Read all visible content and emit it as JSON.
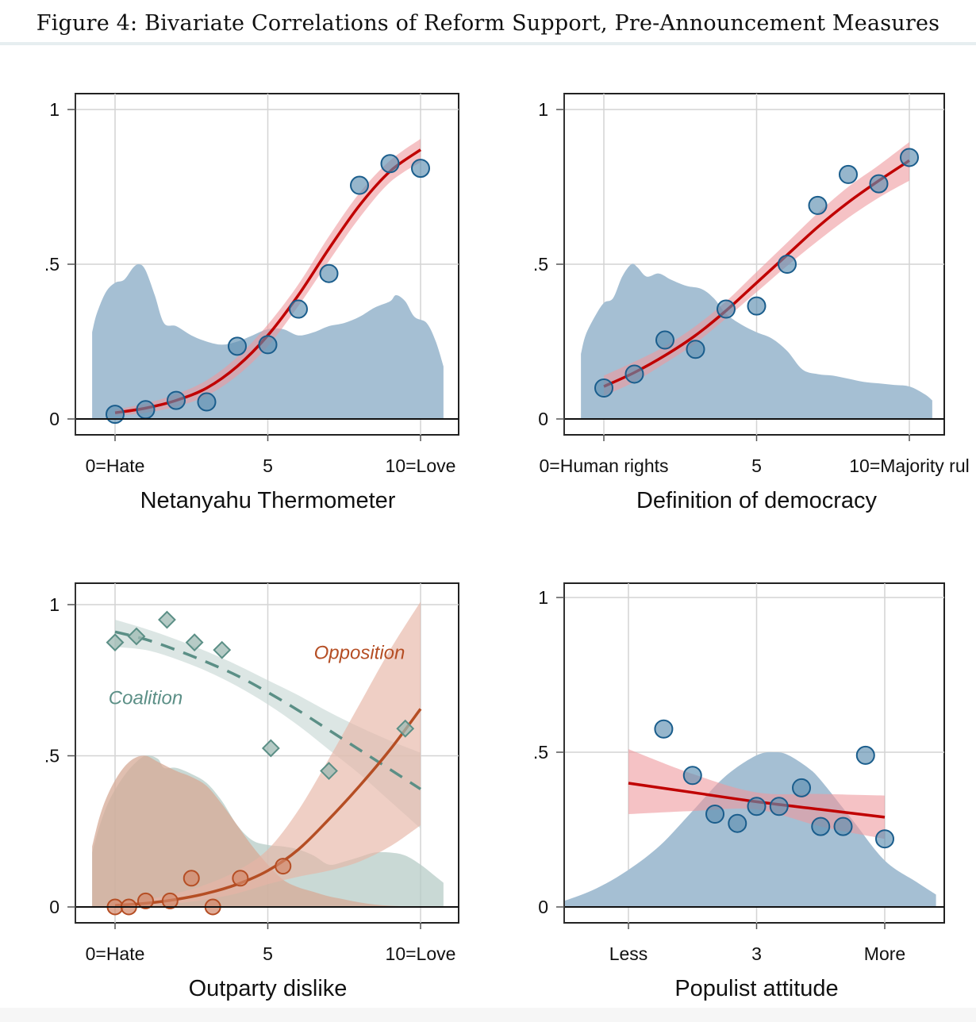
{
  "figure": {
    "title": "Figure 4: Bivariate Correlations of Reform Support, Pre-Announcement Measures"
  },
  "colors": {
    "density_blue": "#a5bfd3",
    "point_blue_fill": "#5d8fb0",
    "point_blue_stroke": "#1a5d8c",
    "fit_red": "#c00000",
    "ci_red": "#ef9a9e",
    "coalition": "#5b8f86",
    "coalition_fill": "#9dbab3",
    "coalition_ci": "#c9d8d5",
    "coalition_density": "#b7ccc7",
    "opposition": "#b54e24",
    "opposition_fill": "#d3876a",
    "opposition_ci": "#e6b6a6",
    "opposition_density": "#d6a996",
    "grid": "#d4d4d4",
    "axis": "#111111"
  },
  "chart_data": [
    {
      "id": "netanyahu",
      "type": "scatter",
      "title": "",
      "xlabel": "Netanyahu Thermometer",
      "ylabel": "",
      "xlim": [
        -1.3,
        11.3
      ],
      "ylim": [
        -0.05,
        1.05
      ],
      "xticks": [
        0,
        5,
        10
      ],
      "xtick_labels": [
        "0=Hate",
        "5",
        "10=Love"
      ],
      "yticks": [
        0,
        0.5,
        1
      ],
      "ytick_labels": [
        "0",
        ".5",
        "1"
      ],
      "grid": true,
      "points": {
        "x": [
          0,
          1,
          2,
          3,
          4,
          5,
          6,
          7,
          8,
          9,
          10
        ],
        "y": [
          0.015,
          0.03,
          0.06,
          0.055,
          0.235,
          0.24,
          0.355,
          0.47,
          0.755,
          0.825,
          0.81
        ]
      },
      "fit": {
        "kind": "logistic",
        "x": [
          0,
          1,
          2,
          3,
          4,
          5,
          6,
          7,
          8,
          9,
          10
        ],
        "y": [
          0.02,
          0.035,
          0.06,
          0.1,
          0.17,
          0.27,
          0.4,
          0.55,
          0.69,
          0.8,
          0.87
        ],
        "ci_low": [
          0.01,
          0.02,
          0.04,
          0.075,
          0.14,
          0.235,
          0.365,
          0.51,
          0.65,
          0.765,
          0.83
        ],
        "ci_high": [
          0.03,
          0.05,
          0.08,
          0.125,
          0.2,
          0.305,
          0.435,
          0.59,
          0.73,
          0.835,
          0.905
        ]
      },
      "density": {
        "x": [
          -0.75,
          -0.6,
          -0.3,
          0,
          0.3,
          0.6,
          0.8,
          1.0,
          1.3,
          1.6,
          2.0,
          2.5,
          3.0,
          3.5,
          4.0,
          4.5,
          5.0,
          5.5,
          6.0,
          6.5,
          7.0,
          7.5,
          8.0,
          8.5,
          9.0,
          9.2,
          9.5,
          9.8,
          10.2,
          10.5,
          10.75
        ],
        "y": [
          0.28,
          0.34,
          0.41,
          0.44,
          0.45,
          0.49,
          0.5,
          0.48,
          0.4,
          0.31,
          0.3,
          0.27,
          0.25,
          0.24,
          0.25,
          0.27,
          0.29,
          0.29,
          0.27,
          0.28,
          0.3,
          0.31,
          0.33,
          0.36,
          0.38,
          0.4,
          0.38,
          0.33,
          0.31,
          0.25,
          0.17
        ]
      }
    },
    {
      "id": "democracy",
      "type": "scatter",
      "title": "",
      "xlabel": "Definition of democracy",
      "ylabel": "",
      "xlim": [
        -1.3,
        11.3
      ],
      "ylim": [
        -0.05,
        1.05
      ],
      "xticks": [
        0,
        5,
        10
      ],
      "xtick_labels": [
        "0=Human rights",
        "5",
        "10=Majority rul"
      ],
      "yticks": [
        0,
        0.5,
        1
      ],
      "ytick_labels": [
        "0",
        ".5",
        "1"
      ],
      "grid": true,
      "points": {
        "x": [
          0,
          1,
          2,
          3,
          4,
          5,
          6,
          7,
          8,
          9,
          10
        ],
        "y": [
          0.1,
          0.145,
          0.255,
          0.225,
          0.355,
          0.365,
          0.5,
          0.69,
          0.79,
          0.76,
          0.845
        ]
      },
      "fit": {
        "kind": "logistic",
        "x": [
          0,
          1,
          2,
          3,
          4,
          5,
          6,
          7,
          8,
          9,
          10
        ],
        "y": [
          0.105,
          0.15,
          0.205,
          0.27,
          0.35,
          0.44,
          0.53,
          0.62,
          0.7,
          0.77,
          0.835
        ],
        "ci_low": [
          0.075,
          0.12,
          0.18,
          0.245,
          0.325,
          0.41,
          0.495,
          0.575,
          0.65,
          0.715,
          0.77
        ],
        "ci_high": [
          0.14,
          0.185,
          0.235,
          0.3,
          0.38,
          0.475,
          0.57,
          0.665,
          0.75,
          0.82,
          0.895
        ]
      },
      "density": {
        "x": [
          -0.75,
          -0.6,
          -0.3,
          0,
          0.3,
          0.6,
          0.9,
          1.1,
          1.4,
          1.8,
          2.2,
          2.7,
          3.2,
          3.6,
          4.0,
          4.5,
          5.0,
          5.5,
          6.0,
          6.5,
          7.0,
          7.5,
          8.0,
          8.5,
          9.0,
          9.5,
          10.0,
          10.5,
          10.75
        ],
        "y": [
          0.21,
          0.27,
          0.33,
          0.375,
          0.39,
          0.46,
          0.5,
          0.49,
          0.46,
          0.47,
          0.45,
          0.43,
          0.42,
          0.39,
          0.34,
          0.305,
          0.28,
          0.26,
          0.22,
          0.16,
          0.145,
          0.14,
          0.13,
          0.12,
          0.115,
          0.11,
          0.105,
          0.08,
          0.06
        ]
      }
    },
    {
      "id": "outparty",
      "type": "scatter",
      "title": "",
      "xlabel": "Outparty dislike",
      "ylabel": "",
      "xlim": [
        -1.3,
        11.3
      ],
      "ylim": [
        -0.05,
        1.05
      ],
      "xticks": [
        0,
        5,
        10
      ],
      "xtick_labels": [
        "0=Hate",
        "5",
        "10=Love"
      ],
      "yticks": [
        0,
        0.5,
        1
      ],
      "ytick_labels": [
        "0",
        ".5",
        "1"
      ],
      "grid": true,
      "annotations": [
        {
          "text": "Opposition",
          "x": 8.0,
          "y": 0.82,
          "series": "opposition"
        },
        {
          "text": "Coalition",
          "x": 1.0,
          "y": 0.67,
          "series": "coalition"
        }
      ],
      "series": [
        {
          "name": "Coalition",
          "marker": "diamond",
          "line": "dashed",
          "points": {
            "x": [
              0,
              0.7,
              1.7,
              2.6,
              3.5,
              5.1,
              7.0,
              9.5
            ],
            "y": [
              0.875,
              0.895,
              0.95,
              0.875,
              0.85,
              0.525,
              0.45,
              0.59
            ]
          },
          "fit": {
            "x": [
              0,
              1,
              2,
              3,
              4,
              5,
              6,
              7,
              8,
              9,
              10
            ],
            "y": [
              0.91,
              0.885,
              0.85,
              0.81,
              0.765,
              0.71,
              0.65,
              0.585,
              0.52,
              0.455,
              0.39
            ],
            "ci_low": [
              0.86,
              0.85,
              0.82,
              0.78,
              0.73,
              0.67,
              0.6,
              0.52,
              0.44,
              0.35,
              0.26
            ],
            "ci_high": [
              0.95,
              0.92,
              0.885,
              0.845,
              0.8,
              0.75,
              0.7,
              0.645,
              0.595,
              0.55,
              0.51
            ]
          },
          "density": {
            "x": [
              -0.75,
              -0.5,
              -0.2,
              0.2,
              0.6,
              1.0,
              1.4,
              1.6,
              2.0,
              2.5,
              3.0,
              3.5,
              4.0,
              4.5,
              5.0,
              5.5,
              6.0,
              6.5,
              7.0,
              7.5,
              8.0,
              8.5,
              9.0,
              9.5,
              10.0,
              10.5,
              10.75
            ],
            "y": [
              0.18,
              0.27,
              0.35,
              0.42,
              0.47,
              0.5,
              0.49,
              0.46,
              0.46,
              0.44,
              0.41,
              0.35,
              0.27,
              0.22,
              0.205,
              0.2,
              0.19,
              0.17,
              0.14,
              0.15,
              0.165,
              0.18,
              0.18,
              0.17,
              0.14,
              0.1,
              0.08
            ]
          }
        },
        {
          "name": "Opposition",
          "marker": "circle",
          "line": "solid",
          "points": {
            "x": [
              0,
              0.45,
              1.0,
              1.8,
              2.5,
              3.2,
              4.1,
              5.5
            ],
            "y": [
              0.0,
              0.0,
              0.02,
              0.02,
              0.095,
              0.0,
              0.095,
              0.135
            ]
          },
          "fit": {
            "x": [
              0,
              1,
              2,
              3,
              4,
              5,
              6,
              7,
              8,
              9,
              10
            ],
            "y": [
              0.005,
              0.012,
              0.025,
              0.045,
              0.075,
              0.12,
              0.19,
              0.29,
              0.4,
              0.52,
              0.655
            ],
            "ci_low": [
              0.0,
              0.005,
              0.012,
              0.025,
              0.045,
              0.075,
              0.1,
              0.12,
              0.15,
              0.2,
              0.27
            ],
            "ci_high": [
              0.015,
              0.025,
              0.045,
              0.075,
              0.12,
              0.19,
              0.32,
              0.49,
              0.67,
              0.85,
              1.01
            ]
          },
          "density": {
            "x": [
              -0.75,
              -0.5,
              -0.2,
              0.2,
              0.6,
              1.0,
              1.4,
              2.0,
              2.5,
              3.0,
              3.5,
              4.0,
              4.5,
              5.0,
              5.5,
              6.0,
              6.5,
              7.0,
              7.5,
              8.0,
              8.5,
              9.0,
              9.5,
              10.0,
              10.5,
              10.75
            ],
            "y": [
              0.2,
              0.3,
              0.38,
              0.45,
              0.49,
              0.5,
              0.48,
              0.45,
              0.43,
              0.4,
              0.34,
              0.27,
              0.2,
              0.14,
              0.09,
              0.065,
              0.05,
              0.035,
              0.025,
              0.015,
              0.008,
              0.004,
              0.002,
              0.001,
              0.0,
              0.0
            ]
          }
        }
      ]
    },
    {
      "id": "populist",
      "type": "scatter",
      "title": "",
      "xlabel": "Populist attitude",
      "ylabel": "",
      "xlim": [
        -0.2,
        5.5
      ],
      "ylim": [
        -0.05,
        1.05
      ],
      "xticks": [
        1,
        3,
        5
      ],
      "xtick_labels": [
        "Less",
        "3",
        "More"
      ],
      "yticks": [
        0,
        0.5,
        1
      ],
      "ytick_labels": [
        "0",
        ".5",
        "1"
      ],
      "grid": true,
      "points": {
        "x": [
          1.55,
          2.0,
          2.35,
          2.7,
          3.0,
          3.35,
          3.7,
          4.0,
          4.35,
          4.7,
          5.0
        ],
        "y": [
          0.575,
          0.425,
          0.3,
          0.27,
          0.325,
          0.325,
          0.385,
          0.26,
          0.26,
          0.49,
          0.22
        ]
      },
      "fit": {
        "kind": "linear",
        "x": [
          1,
          2,
          3,
          4,
          5
        ],
        "y": [
          0.4,
          0.37,
          0.34,
          0.315,
          0.29
        ],
        "ci_low": [
          0.3,
          0.31,
          0.315,
          0.26,
          0.22
        ],
        "ci_high": [
          0.51,
          0.43,
          0.37,
          0.365,
          0.36
        ]
      },
      "density": {
        "x": [
          -0.4,
          0.0,
          0.5,
          1.0,
          1.5,
          2.0,
          2.5,
          3.0,
          3.3,
          3.5,
          3.8,
          4.0,
          4.5,
          5.0,
          5.5,
          5.8
        ],
        "y": [
          0.0,
          0.02,
          0.06,
          0.12,
          0.2,
          0.31,
          0.42,
          0.49,
          0.5,
          0.49,
          0.45,
          0.41,
          0.28,
          0.15,
          0.08,
          0.04
        ]
      }
    }
  ]
}
